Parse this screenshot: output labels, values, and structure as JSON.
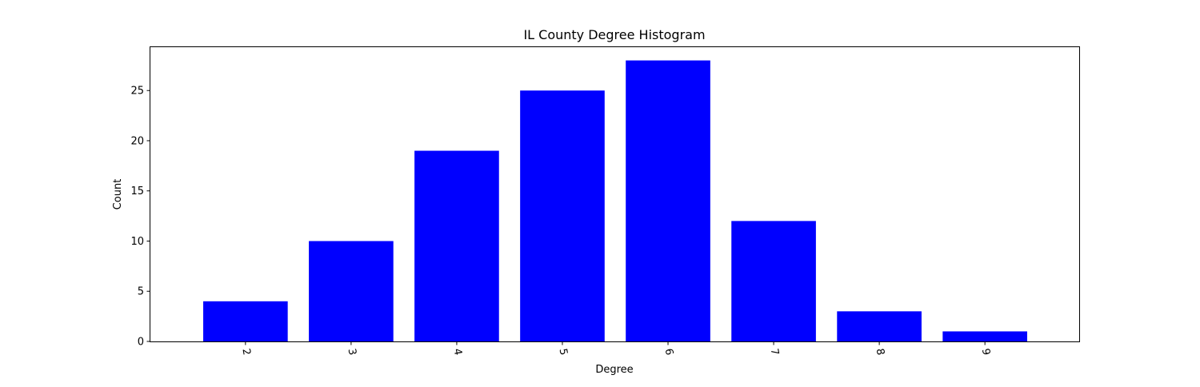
{
  "chart_data": {
    "type": "bar",
    "title": "IL County Degree Histogram",
    "xlabel": "Degree",
    "ylabel": "Count",
    "categories": [
      "2",
      "3",
      "4",
      "5",
      "6",
      "7",
      "8",
      "9"
    ],
    "values": [
      4,
      10,
      19,
      25,
      28,
      12,
      3,
      1
    ],
    "ylim": [
      0,
      29.4
    ],
    "yticks": [
      0,
      5,
      10,
      15,
      20,
      25
    ],
    "grid": false,
    "bar_color": "#0000ff",
    "x_tick_label_rotation": "rotated clockwise (about -80°)"
  }
}
